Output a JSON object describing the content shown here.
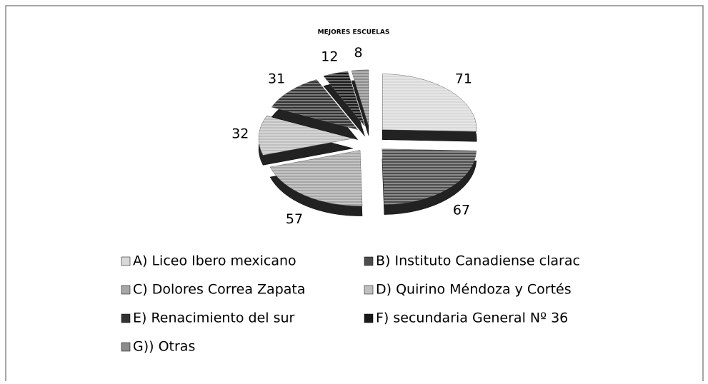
{
  "chart_data": {
    "type": "pie",
    "title": "MEJORES ESCUELAS",
    "categories": [
      "A) Liceo Ibero mexicano",
      "B) Instituto Canadiense clarac",
      "C) Dolores Correa Zapata",
      "D) Quirino Méndoza y Cortés",
      "E) Renacimiento del sur",
      "F) secundaria General Nº 36",
      "G)) Otras"
    ],
    "values": [
      71,
      67,
      57,
      32,
      31,
      12,
      8
    ],
    "colors": [
      "#d9d9d9",
      "#4d4d4d",
      "#a6a6a6",
      "#bfbfbf",
      "#333333",
      "#1a1a1a",
      "#8c8c8c"
    ]
  }
}
